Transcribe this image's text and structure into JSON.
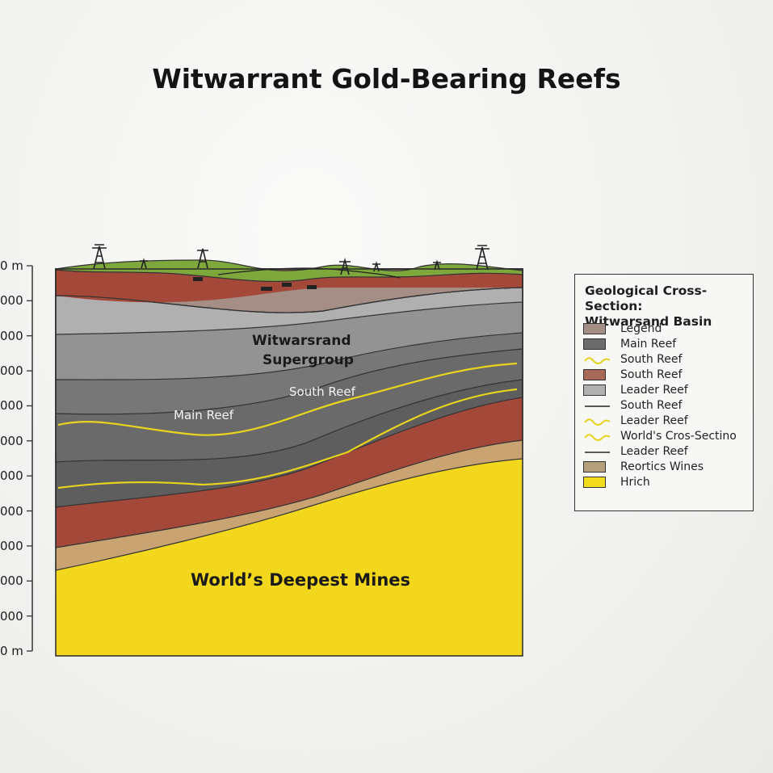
{
  "title": "Witwarrant Gold-Bearing Reefs",
  "depth_axis": {
    "tick_labels": [
      "0 m",
      "000",
      "000",
      "000",
      "000",
      "000",
      "000",
      "000",
      "000",
      "000",
      "000",
      "0 m"
    ]
  },
  "diagram_labels": {
    "supergroup_line1": "Witwarsrand",
    "supergroup_line2": "Supergroup",
    "south_reef": "South Reef",
    "main_reef": "Main Reef",
    "deepest_mines": "World’s Deepest Mines"
  },
  "legend": {
    "title_line1": "Geological Cross-Section:",
    "title_line2": "Witwarsand Basin",
    "items": [
      {
        "label": "Legend",
        "kind": "swatch",
        "color": "#a48e86"
      },
      {
        "label": "Main Reef",
        "kind": "swatch",
        "color": "#6b6b6b"
      },
      {
        "label": "South Reef",
        "kind": "wave",
        "color": "#e6d21e"
      },
      {
        "label": "South Reef",
        "kind": "swatch",
        "color": "#a86a58"
      },
      {
        "label": "Leader Reef",
        "kind": "swatch",
        "color": "#b0b0b0"
      },
      {
        "label": "South Reef",
        "kind": "line",
        "color": "#222222"
      },
      {
        "label": "Leader Reef",
        "kind": "wave",
        "color": "#e6d21e"
      },
      {
        "label": "World's Cros-Sectino",
        "kind": "wave",
        "color": "#e6d21e"
      },
      {
        "label": "Leader Reef",
        "kind": "line",
        "color": "#222222"
      },
      {
        "label": "Reortics Wines",
        "kind": "swatch",
        "color": "#b3a07a"
      },
      {
        "label": "Hrich",
        "kind": "swatch",
        "color": "#f2dc1c"
      }
    ]
  },
  "colors": {
    "surface": "#7ea83c",
    "red_layer": "#a4493a",
    "mauve_layer": "#a48e86",
    "light_gray": "#ababab",
    "mid_gray": "#8e8e8e",
    "dark_gray": "#666666",
    "tan_layer": "#c9a472",
    "gold_layer": "#f2d71c",
    "reef_line": "#e8d41e"
  }
}
